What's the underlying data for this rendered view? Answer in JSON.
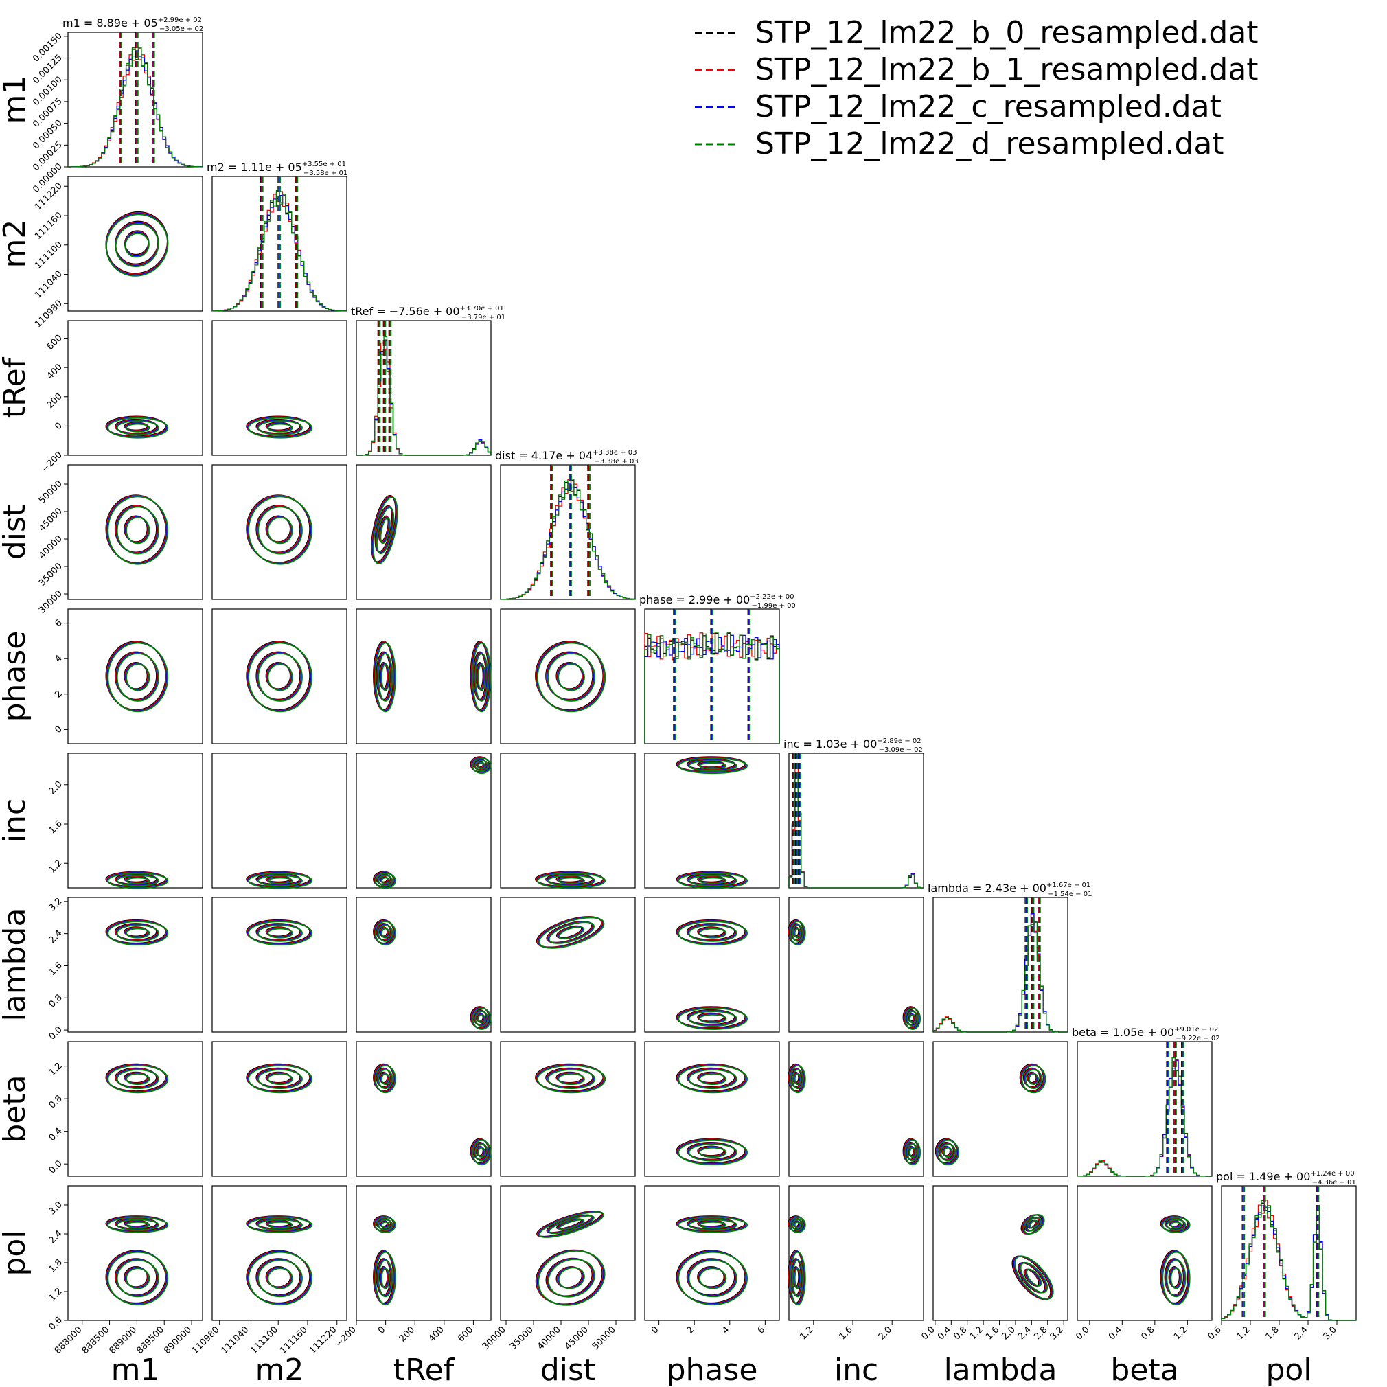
{
  "chart_data": {
    "type": "corner",
    "params": [
      {
        "key": "m1",
        "label": "m1",
        "ticks": [
          "888000",
          "888500",
          "889000",
          "889500",
          "890000"
        ],
        "range": [
          887740,
          890200
        ],
        "median": 889000,
        "sigma": 300,
        "annotation": {
          "main": "m1 = 8.89e + 05",
          "sup": "+2.99e + 02",
          "sub": "−3.05e + 02"
        },
        "ticks_y": [
          "0.00000",
          "0.00025",
          "0.00050",
          "0.00075",
          "0.00100",
          "0.00125",
          "0.00150"
        ]
      },
      {
        "key": "m2",
        "label": "m2",
        "ticks": [
          "110980",
          "111040",
          "111100",
          "111160",
          "111220"
        ],
        "range": [
          110965,
          111240
        ],
        "median": 111102,
        "sigma": 35.5,
        "annotation": {
          "main": "m2 = 1.11e + 05",
          "sup": "+3.55e + 01",
          "sub": "−3.58e + 01"
        },
        "ticks_y": [
          "110980",
          "111040",
          "111100",
          "111160",
          "111220"
        ]
      },
      {
        "key": "tRef",
        "label": "tRef",
        "ticks": [
          "−200",
          "0",
          "200",
          "400",
          "600"
        ],
        "range": [
          -200,
          720
        ],
        "median": -7.56,
        "sigma": 37.5,
        "annotation": {
          "main": "tRef = −7.56e + 00",
          "sup": "+3.70e + 01",
          "sub": "−3.79e + 01"
        },
        "ticks_y": [
          "−200",
          "0",
          "200",
          "400",
          "600"
        ]
      },
      {
        "key": "dist",
        "label": "dist",
        "ticks": [
          "30000",
          "35000",
          "40000",
          "45000",
          "50000"
        ],
        "range": [
          29000,
          53500
        ],
        "median": 41700,
        "sigma": 3380,
        "annotation": {
          "main": "dist = 4.17e + 04",
          "sup": "+3.38e + 03",
          "sub": "−3.38e + 03"
        },
        "ticks_y": [
          "30000",
          "35000",
          "40000",
          "45000",
          "50000"
        ]
      },
      {
        "key": "phase",
        "label": "phase",
        "ticks": [
          "0",
          "2",
          "4",
          "6"
        ],
        "range": [
          -0.8,
          6.8
        ],
        "median": 2.99,
        "sigma": 2.1,
        "annotation": {
          "main": "phase = 2.99e + 00",
          "sup": "+2.22e + 00",
          "sub": "−1.99e + 00"
        },
        "ticks_y": [
          "0",
          "2",
          "4",
          "6"
        ]
      },
      {
        "key": "inc",
        "label": "inc",
        "ticks": [
          "1.2",
          "1.6",
          "2.0"
        ],
        "range": [
          0.95,
          2.32
        ],
        "median": 1.03,
        "sigma": 0.03,
        "annotation": {
          "main": "inc = 1.03e + 00",
          "sup": "+2.89e − 02",
          "sub": "−3.09e − 02"
        },
        "ticks_y": [
          "1.2",
          "1.6",
          "2.0"
        ]
      },
      {
        "key": "lambda",
        "label": "lambda",
        "ticks": [
          "0.0",
          "0.4",
          "0.8",
          "1.2",
          "1.6",
          "2.0",
          "2.4",
          "2.8",
          "3.2"
        ],
        "range": [
          -0.05,
          3.3
        ],
        "median": 2.43,
        "sigma": 0.16,
        "annotation": {
          "main": "lambda = 2.43e + 00",
          "sup": "+1.67e − 01",
          "sub": "−1.54e − 01"
        },
        "ticks_y": [
          "0.0",
          "0.8",
          "1.6",
          "2.4",
          "3.2"
        ]
      },
      {
        "key": "beta",
        "label": "beta",
        "ticks": [
          "0.0",
          "0.4",
          "0.8",
          "1.2"
        ],
        "range": [
          -0.15,
          1.5
        ],
        "median": 1.05,
        "sigma": 0.091,
        "annotation": {
          "main": "beta = 1.05e + 00",
          "sup": "+9.01e − 02",
          "sub": "−9.22e − 02"
        },
        "ticks_y": [
          "0.0",
          "0.4",
          "0.8",
          "1.2"
        ]
      },
      {
        "key": "pol",
        "label": "pol",
        "ticks": [
          "0.6",
          "1.2",
          "1.8",
          "2.4",
          "3.0"
        ],
        "range": [
          0.6,
          3.4
        ],
        "median": 1.49,
        "sigma": 0.3,
        "annotation": {
          "main": "pol = 1.49e + 00",
          "sup": "+1.24e + 00",
          "sub": "−4.36e − 01"
        },
        "ticks_y": [
          "0.6",
          "1.2",
          "1.8",
          "2.4",
          "3.0"
        ]
      }
    ],
    "series": [
      {
        "name": "STP_12_lm22_b_0_resampled.dat",
        "color": "#000000"
      },
      {
        "name": "STP_12_lm22_b_1_resampled.dat",
        "color": "#ff0000"
      },
      {
        "name": "STP_12_lm22_c_resampled.dat",
        "color": "#0000ff"
      },
      {
        "name": "STP_12_lm22_d_resampled.dat",
        "color": "#008000"
      }
    ],
    "secondary_modes": {
      "tRef": 650,
      "inc": 2.2,
      "lambda": 0.3,
      "beta": 0.15
    },
    "legend_position": "top-right"
  }
}
